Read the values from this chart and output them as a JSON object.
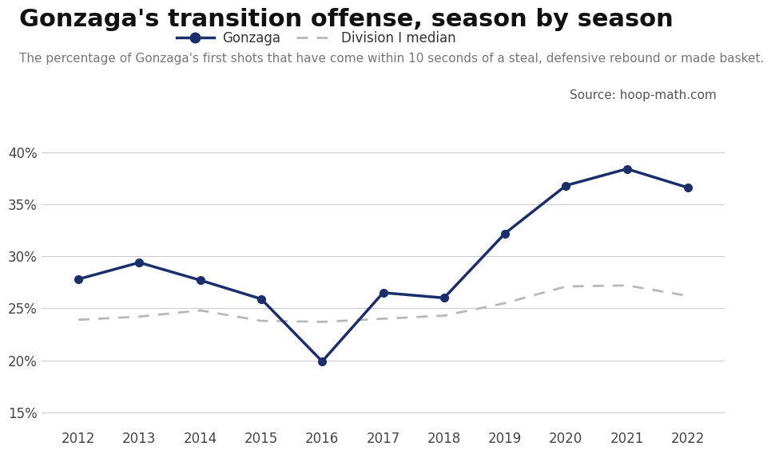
{
  "title": "Gonzaga's transition offense, season by season",
  "subtitle": "The percentage of Gonzaga's first shots that have come within 10 seconds of a steal, defensive rebound or made basket.",
  "source": "Source: hoop-math.com",
  "years": [
    2012,
    2013,
    2014,
    2015,
    2016,
    2017,
    2018,
    2019,
    2020,
    2021,
    2022
  ],
  "gonzaga": [
    0.278,
    0.294,
    0.277,
    0.259,
    0.199,
    0.265,
    0.26,
    0.322,
    0.368,
    0.384,
    0.366
  ],
  "div1_median": [
    0.239,
    0.242,
    0.248,
    0.238,
    0.237,
    0.24,
    0.243,
    0.255,
    0.271,
    0.272,
    0.262
  ],
  "gonzaga_color": "#1a2e6b",
  "median_color": "#b8b8b8",
  "background_color": "#ffffff",
  "grid_color": "#cccccc",
  "title_fontsize": 22,
  "subtitle_fontsize": 11,
  "source_fontsize": 11,
  "axis_fontsize": 12,
  "legend_fontsize": 12,
  "ylim": [
    0.14,
    0.42
  ],
  "yticks": [
    0.15,
    0.2,
    0.25,
    0.3,
    0.35,
    0.4
  ]
}
